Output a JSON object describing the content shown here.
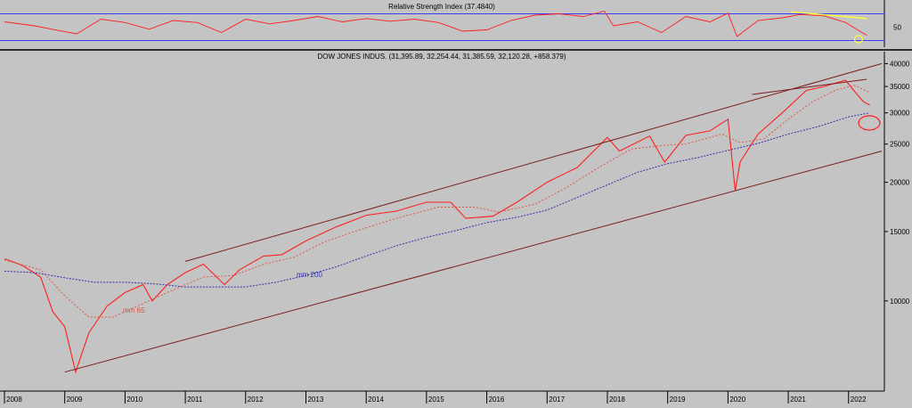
{
  "chart_data": [
    {
      "type": "line",
      "title": "Relative Strength Index (37.4840)",
      "ylabel": "",
      "y_ticks": [
        "50"
      ],
      "levels": [
        70,
        30
      ],
      "level_color": "#3b3bff",
      "series": [
        {
          "color": "#ff1f1f",
          "x": [
            2008.0,
            2008.5,
            2008.9,
            2009.2,
            2009.6,
            2010.0,
            2010.4,
            2010.8,
            2011.2,
            2011.6,
            2012.0,
            2012.4,
            2012.8,
            2013.2,
            2013.6,
            2014.0,
            2014.4,
            2014.8,
            2015.2,
            2015.6,
            2016.0,
            2016.4,
            2016.8,
            2017.2,
            2017.6,
            2017.95,
            2018.1,
            2018.5,
            2018.9,
            2019.3,
            2019.7,
            2020.0,
            2020.15,
            2020.5,
            2020.9,
            2021.2,
            2021.6,
            2021.95,
            2022.15,
            2022.3
          ],
          "y": [
            58,
            52,
            45,
            40,
            62,
            57,
            47,
            60,
            57,
            42,
            62,
            55,
            60,
            66,
            58,
            63,
            59,
            62,
            57,
            44,
            46,
            60,
            68,
            70,
            66,
            74,
            52,
            58,
            42,
            66,
            58,
            71,
            36,
            60,
            64,
            69,
            67,
            57,
            46,
            38
          ]
        },
        {
          "color": "#ffff33",
          "x": [
            2021.05,
            2022.3
          ],
          "y": [
            73,
            63
          ]
        }
      ]
    },
    {
      "type": "line",
      "title": "DOW JONES INDUS. (31,395.89, 32,254.44, 31,385.59, 32,120.28, +858.379)",
      "scale": "log",
      "ylim": [
        6000,
        42000
      ],
      "y_ticks": [
        "40000",
        "35000",
        "30000",
        "25000",
        "20000",
        "15000",
        "10000"
      ],
      "x_ticks": [
        "2008",
        "2009",
        "2010",
        "2011",
        "2012",
        "2013",
        "2014",
        "2015",
        "2016",
        "2017",
        "2018",
        "2019",
        "2020",
        "2021",
        "2022"
      ],
      "xlim": [
        2008.0,
        2022.55
      ],
      "annotations": [
        "mm 65",
        "mm 200"
      ],
      "series": [
        {
          "kind": "price",
          "color": "#ff1f1f",
          "x": [
            2008.0,
            2008.3,
            2008.6,
            2008.8,
            2009.0,
            2009.18,
            2009.4,
            2009.7,
            2010.0,
            2010.3,
            2010.45,
            2010.7,
            2011.0,
            2011.3,
            2011.65,
            2011.9,
            2012.3,
            2012.6,
            2013.0,
            2013.5,
            2014.0,
            2014.5,
            2015.0,
            2015.4,
            2015.65,
            2016.1,
            2016.5,
            2017.0,
            2017.5,
            2018.0,
            2018.2,
            2018.7,
            2018.95,
            2019.3,
            2019.7,
            2020.0,
            2020.12,
            2020.2,
            2020.5,
            2020.9,
            2021.3,
            2021.6,
            2021.95,
            2022.1,
            2022.25,
            2022.35
          ],
          "y": [
            12800,
            12300,
            11500,
            9400,
            8600,
            6600,
            8300,
            9700,
            10500,
            11000,
            10000,
            11000,
            11800,
            12400,
            11000,
            12000,
            13000,
            13100,
            14200,
            15400,
            16500,
            16900,
            17800,
            17800,
            16200,
            16400,
            17800,
            20000,
            21800,
            26000,
            24000,
            26200,
            22500,
            26300,
            27000,
            28900,
            19000,
            22500,
            26500,
            30000,
            34200,
            35000,
            36300,
            34000,
            32000,
            31400
          ]
        },
        {
          "kind": "mm65",
          "color": "#e0503a",
          "x": [
            2008.0,
            2008.6,
            2009.0,
            2009.4,
            2009.8,
            2010.2,
            2010.7,
            2011.3,
            2011.8,
            2012.3,
            2012.8,
            2013.3,
            2013.8,
            2014.5,
            2015.2,
            2015.8,
            2016.2,
            2016.8,
            2017.3,
            2017.9,
            2018.4,
            2018.9,
            2019.3,
            2019.9,
            2020.2,
            2020.6,
            2021.0,
            2021.4,
            2021.8,
            2022.1,
            2022.35
          ],
          "y": [
            12700,
            12000,
            10300,
            9100,
            9100,
            9700,
            10500,
            11500,
            11600,
            12400,
            12900,
            14100,
            15000,
            16200,
            17300,
            17300,
            16800,
            17600,
            19300,
            22000,
            24300,
            24800,
            25000,
            26500,
            25200,
            25800,
            28900,
            32000,
            34300,
            35200,
            33800
          ]
        },
        {
          "kind": "mm200",
          "color": "#3333aa",
          "x": [
            2008.0,
            2008.5,
            2009.0,
            2009.5,
            2010.0,
            2010.5,
            2011.0,
            2011.5,
            2012.0,
            2012.5,
            2013.0,
            2013.5,
            2014.0,
            2014.5,
            2015.0,
            2015.5,
            2016.0,
            2016.5,
            2017.0,
            2017.5,
            2018.0,
            2018.5,
            2019.0,
            2019.5,
            2020.0,
            2020.5,
            2021.0,
            2021.5,
            2022.0,
            2022.35
          ],
          "y": [
            11900,
            11800,
            11450,
            11150,
            11150,
            11050,
            10850,
            10850,
            10850,
            11150,
            11600,
            12200,
            13000,
            13800,
            14500,
            15100,
            15800,
            16300,
            17000,
            18300,
            19700,
            21200,
            22300,
            23100,
            24100,
            25100,
            26500,
            27700,
            29300,
            30000
          ]
        },
        {
          "kind": "channel-upper",
          "color": "#7a1e1e",
          "x": [
            2011.0,
            2022.55
          ],
          "y": [
            12600,
            40000
          ]
        },
        {
          "kind": "channel-lower",
          "color": "#7a1e1e",
          "x": [
            2009.0,
            2022.55
          ],
          "y": [
            6600,
            24000
          ]
        },
        {
          "kind": "channel-mid",
          "color": "#7a1e1e",
          "x": [
            2020.4,
            2022.3
          ],
          "y": [
            33400,
            36500
          ]
        }
      ]
    }
  ]
}
